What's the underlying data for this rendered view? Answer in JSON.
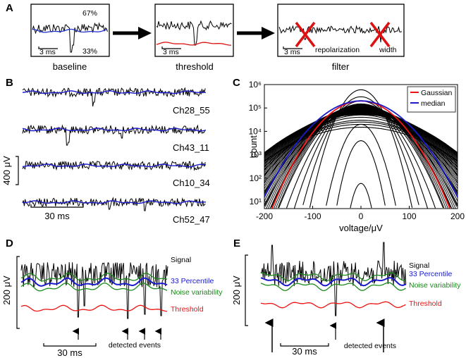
{
  "panels": {
    "A": {
      "label": "A",
      "steps": [
        {
          "caption": "baseline",
          "scale": "3 ms",
          "pct_top": "67%",
          "pct_bottom": "33%"
        },
        {
          "caption": "threshold",
          "scale": "3 ms"
        },
        {
          "caption": "filter",
          "scale": "3 ms",
          "reject1": "repolarization",
          "reject2": "width"
        }
      ],
      "colors": {
        "baseline": "#2233cc",
        "threshold": "#dd1111",
        "reject": "#dd1111"
      }
    },
    "B": {
      "label": "B",
      "channels": [
        "Ch28_55",
        "Ch43_11",
        "Ch10_34",
        "Ch52_47"
      ],
      "vscale": "400 μV",
      "hscale": "30 ms"
    },
    "D": {
      "label": "D",
      "traces": [
        "Signal",
        "33 Percentile",
        "Noise variability",
        "Threshold"
      ],
      "vscale": "200 μV",
      "hscale": "30 ms",
      "events_label": "detected events"
    },
    "E": {
      "label": "E",
      "traces": [
        "Signal",
        "33 Percentile",
        "Noise variability",
        "Threshold"
      ],
      "vscale": "200 μV",
      "hscale": "30 ms",
      "events_label": "detected events"
    }
  },
  "trace_colors": {
    "signal": "#000000",
    "percentile": "#1a1acc",
    "variability": "#1a8a1a",
    "threshold": "#ee1111"
  },
  "chart_data": {
    "label": "C",
    "type": "line",
    "title": "",
    "xlabel": "voltage/μV",
    "ylabel": "count",
    "xlim": [
      -200,
      200
    ],
    "ylim": [
      5,
      1000000
    ],
    "yscale": "log",
    "xticks": [
      -200,
      -100,
      0,
      100,
      200
    ],
    "yticks": [
      10,
      100,
      1000,
      10000,
      100000,
      1000000
    ],
    "ytick_labels": [
      "10¹",
      "10²",
      "10³",
      "10⁴",
      "10⁵",
      "10⁶"
    ],
    "legend": {
      "position": "top-right",
      "entries": [
        "Gaussian",
        "median"
      ]
    },
    "series": [
      {
        "name": "Gaussian",
        "color": "#ee1111",
        "peak": 200000,
        "sigma": 40
      },
      {
        "name": "median",
        "color": "#1a1acc",
        "peak": 200000,
        "sigma": 46
      }
    ],
    "channel_sigmas": [
      10,
      14,
      18,
      22,
      26,
      30,
      34,
      38,
      42,
      46,
      50,
      54,
      58,
      62,
      66,
      70,
      74,
      78
    ],
    "channel_peaks": [
      60,
      4000,
      20000,
      600000,
      300000,
      200000,
      150000,
      120000,
      100000,
      80000,
      70000,
      60000,
      50000,
      40000,
      30000,
      25000,
      20000,
      15000
    ]
  }
}
